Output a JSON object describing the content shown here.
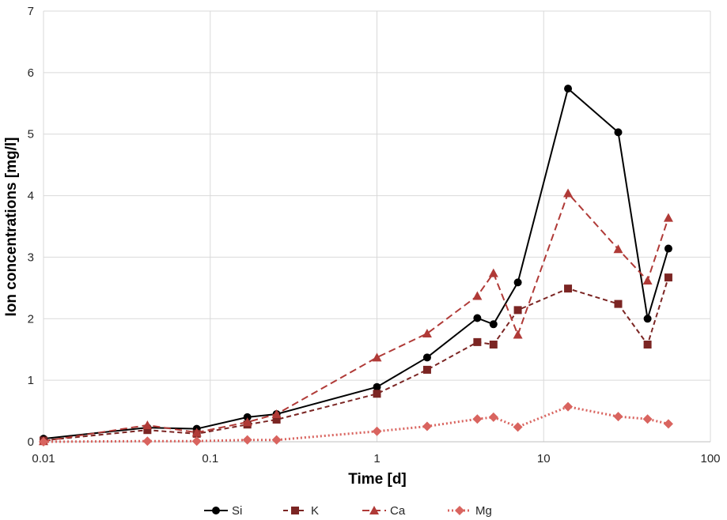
{
  "chart_data": {
    "type": "line",
    "title": "",
    "xlabel": "Time [d]",
    "ylabel": "Ion concentrations [mg/l]",
    "xscale": "log",
    "xlim": [
      0.01,
      100
    ],
    "ylim": [
      0,
      7
    ],
    "xticks": [
      0.01,
      0.1,
      1,
      10,
      100
    ],
    "xtick_labels": [
      "0.01",
      "0.1",
      "1",
      "10",
      "100"
    ],
    "yticks": [
      0,
      1,
      2,
      3,
      4,
      5,
      6,
      7
    ],
    "ytick_labels": [
      "0",
      "1",
      "2",
      "3",
      "4",
      "5",
      "6",
      "7"
    ],
    "grid": true,
    "legend_position": "bottom",
    "series": [
      {
        "name": "Si",
        "color": "#000000",
        "marker": "circle",
        "dash": "solid",
        "x": [
          0.01,
          0.042,
          0.083,
          0.167,
          0.25,
          1,
          2,
          4,
          5,
          7,
          14,
          28,
          42,
          56
        ],
        "y": [
          0.05,
          0.23,
          0.21,
          0.4,
          0.45,
          0.89,
          1.37,
          2.01,
          1.91,
          2.59,
          5.74,
          5.03,
          2.0,
          3.14
        ]
      },
      {
        "name": "K",
        "color": "#7b2523",
        "marker": "square",
        "dash": "dashed",
        "x": [
          0.01,
          0.042,
          0.083,
          0.167,
          0.25,
          1,
          2,
          4,
          5,
          7,
          14,
          28,
          42,
          56
        ],
        "y": [
          0.02,
          0.19,
          0.13,
          0.28,
          0.36,
          0.78,
          1.17,
          1.62,
          1.58,
          2.14,
          2.49,
          2.24,
          1.58,
          2.67
        ]
      },
      {
        "name": "Ca",
        "color": "#b03a37",
        "marker": "triangle",
        "dash": "longdash",
        "x": [
          0.01,
          0.042,
          0.083,
          0.167,
          0.25,
          1,
          2,
          4,
          5,
          7,
          14,
          28,
          42,
          56
        ],
        "y": [
          0.01,
          0.27,
          0.15,
          0.32,
          0.45,
          1.37,
          1.76,
          2.37,
          2.74,
          1.74,
          4.04,
          3.13,
          2.62,
          3.64
        ]
      },
      {
        "name": "Mg",
        "color": "#d9645f",
        "marker": "diamond",
        "dash": "dotted",
        "x": [
          0.01,
          0.042,
          0.083,
          0.167,
          0.25,
          1,
          2,
          4,
          5,
          7,
          14,
          28,
          42,
          56
        ],
        "y": [
          0.0,
          0.01,
          0.01,
          0.03,
          0.03,
          0.17,
          0.25,
          0.37,
          0.4,
          0.24,
          0.57,
          0.41,
          0.37,
          0.29
        ]
      }
    ]
  }
}
